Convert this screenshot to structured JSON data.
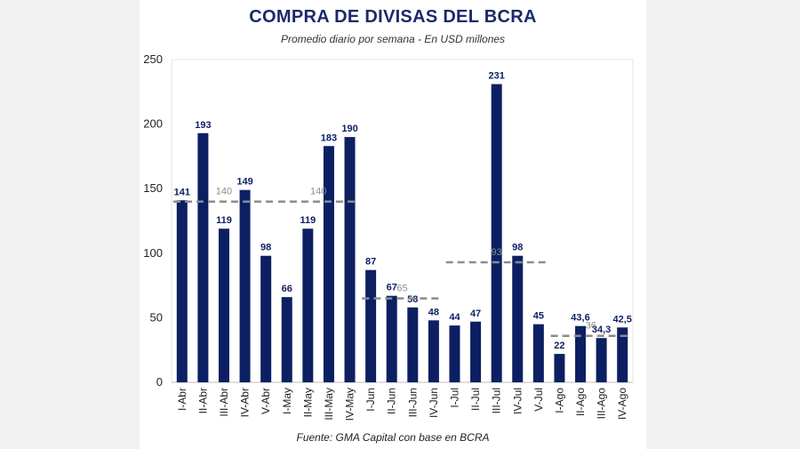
{
  "header": {
    "title": "COMPRA DE DIVISAS DEL BCRA",
    "subtitle": "Promedio diario por semana - En USD millones"
  },
  "footer": {
    "source": "Fuente: GMA Capital con base en BCRA"
  },
  "colors": {
    "bar": "#0d1f63",
    "bar_label": "#0d1f63",
    "average_line": "#8c8c8c",
    "average_label": "#8c8c8c",
    "axis_text": "#222222"
  },
  "chart_data": {
    "type": "bar",
    "ylim": [
      0,
      250
    ],
    "yticks": [
      0,
      50,
      100,
      150,
      200,
      250
    ],
    "grid": false,
    "categories": [
      "I-Abr",
      "II-Abr",
      "III-Abr",
      "IV-Abr",
      "V-Abr",
      "I-May",
      "II-May",
      "III-May",
      "IV-May",
      "I-Jun",
      "II-Jun",
      "III-Jun",
      "IV-Jun",
      "I-Jul",
      "II-Jul",
      "III-Jul",
      "IV-Jul",
      "V-Jul",
      "I-Ago",
      "II-Ago",
      "III-Ago",
      "IV-Ago"
    ],
    "values": [
      141,
      193,
      119,
      149,
      98,
      66,
      119,
      183,
      190,
      87,
      67,
      58,
      48,
      44,
      47,
      231,
      98,
      45,
      22,
      43.6,
      34.3,
      42.5
    ],
    "value_labels": [
      "141",
      "193",
      "119",
      "149",
      "98",
      "66",
      "119",
      "183",
      "190",
      "87",
      "67",
      "58",
      "48",
      "44",
      "47",
      "231",
      "98",
      "45",
      "22",
      "43,6",
      "34,3",
      "42,5"
    ],
    "monthly_averages": [
      {
        "label": "140",
        "value": 140,
        "from_index": 0,
        "to_index": 4
      },
      {
        "label": "140",
        "value": 140,
        "from_index": 5,
        "to_index": 8
      },
      {
        "label": "65",
        "value": 65,
        "from_index": 9,
        "to_index": 12
      },
      {
        "label": "93",
        "value": 93,
        "from_index": 13,
        "to_index": 17
      },
      {
        "label": "36",
        "value": 36,
        "from_index": 18,
        "to_index": 21
      }
    ]
  }
}
